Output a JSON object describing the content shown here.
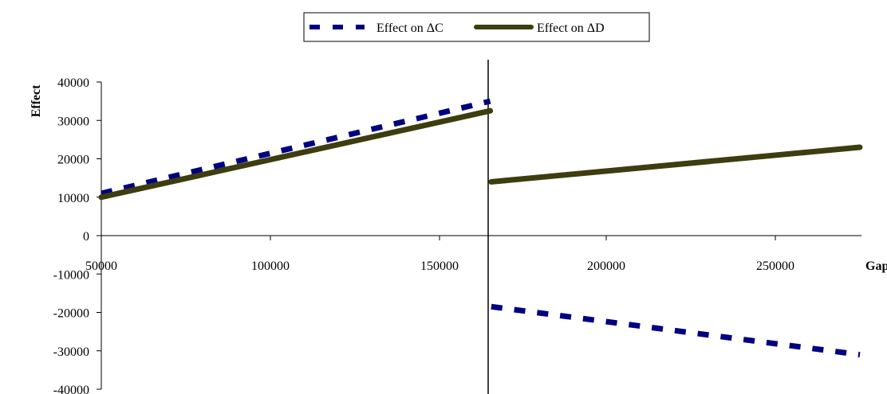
{
  "chart_data": {
    "type": "line",
    "title": "",
    "xlabel": "Gap",
    "ylabel": "Effect",
    "xlim": [
      50000,
      275000
    ],
    "ylim": [
      -40000,
      40000
    ],
    "x_ticks": [
      "50000",
      "100000",
      "150000",
      "200000",
      "250000"
    ],
    "x_tick_values": [
      50000,
      100000,
      150000,
      200000,
      250000
    ],
    "y_ticks": [
      "40000",
      "30000",
      "20000",
      "10000",
      "0",
      "-10000",
      "-20000",
      "-30000",
      "-40000"
    ],
    "y_tick_values": [
      40000,
      30000,
      20000,
      10000,
      0,
      -10000,
      -20000,
      -30000,
      -40000
    ],
    "grid": false,
    "legend_position": "top-center",
    "threshold_x": 165000,
    "series": [
      {
        "name": "Effect on ΔC",
        "style": "dashed",
        "color": "#000080",
        "segments": [
          [
            [
              50000,
              11000
            ],
            [
              165000,
              35000
            ]
          ],
          [
            [
              166000,
              -18500
            ],
            [
              275000,
              -31000
            ]
          ]
        ]
      },
      {
        "name": "Effect on ΔD",
        "style": "solid",
        "color": "#3d3d0f",
        "segments": [
          [
            [
              50000,
              10000
            ],
            [
              165000,
              32500
            ]
          ],
          [
            [
              166000,
              14000
            ],
            [
              275000,
              23000
            ]
          ]
        ]
      }
    ]
  }
}
